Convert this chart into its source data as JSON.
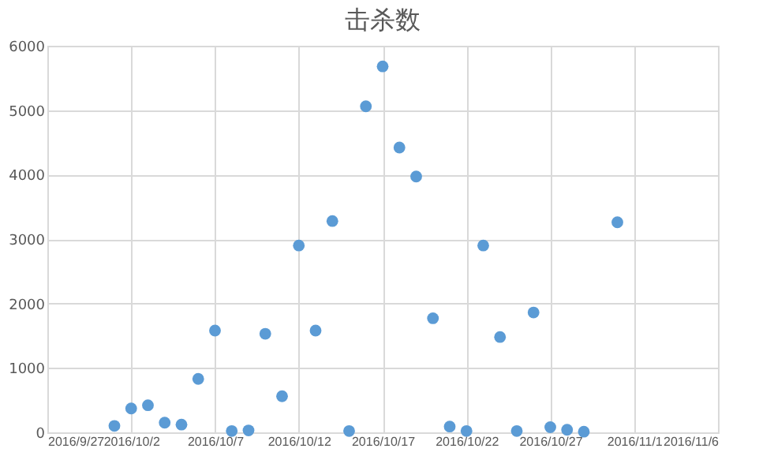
{
  "chart_data": {
    "type": "scatter",
    "title": "击杀数",
    "x": [
      "2016-10-01",
      "2016-10-02",
      "2016-10-03",
      "2016-10-04",
      "2016-10-05",
      "2016-10-06",
      "2016-10-07",
      "2016-10-08",
      "2016-10-09",
      "2016-10-10",
      "2016-10-11",
      "2016-10-12",
      "2016-10-13",
      "2016-10-14",
      "2016-10-15",
      "2016-10-16",
      "2016-10-17",
      "2016-10-18",
      "2016-10-19",
      "2016-10-20",
      "2016-10-21",
      "2016-10-22",
      "2016-10-23",
      "2016-10-24",
      "2016-10-25",
      "2016-10-26",
      "2016-10-27",
      "2016-10-28",
      "2016-10-29",
      "2016-10-31"
    ],
    "series": [
      {
        "color": "#5b9bd5",
        "values": [
          100,
          370,
          420,
          150,
          120,
          830,
          1580,
          20,
          30,
          1530,
          560,
          2900,
          1580,
          3280,
          20,
          5060,
          5680,
          4420,
          3970,
          1770,
          90,
          20,
          2900,
          1480,
          20,
          1860,
          80,
          40,
          10,
          3260
        ]
      }
    ],
    "xlim": [
      "2016-09-27",
      "2016-11-06"
    ],
    "xticks": [
      {
        "value": "2016-09-27",
        "label": "2016/9/27"
      },
      {
        "value": "2016-10-02",
        "label": "2016/10/2"
      },
      {
        "value": "2016-10-07",
        "label": "2016/10/7"
      },
      {
        "value": "2016-10-12",
        "label": "2016/10/12"
      },
      {
        "value": "2016-10-17",
        "label": "2016/10/17"
      },
      {
        "value": "2016-10-22",
        "label": "2016/10/22"
      },
      {
        "value": "2016-10-27",
        "label": "2016/10/27"
      },
      {
        "value": "2016-11-01",
        "label": "2016/11/1"
      },
      {
        "value": "2016-11-06",
        "label": "2016/11/6"
      }
    ],
    "ylim": [
      0,
      6000
    ],
    "yticks": [
      0,
      1000,
      2000,
      3000,
      4000,
      5000,
      6000
    ],
    "grid": true,
    "marker": "circle",
    "legend": false
  }
}
